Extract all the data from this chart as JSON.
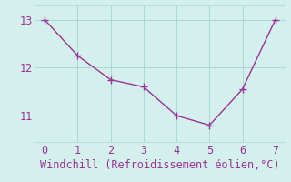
{
  "x": [
    0,
    1,
    2,
    3,
    4,
    5,
    6,
    7
  ],
  "y": [
    13.0,
    12.25,
    11.75,
    11.6,
    11.0,
    10.8,
    11.55,
    13.0
  ],
  "line_color": "#993399",
  "marker_color": "#993399",
  "background_color": "#d4f0ec",
  "grid_color": "#aad8d4",
  "xlabel": "Windchill (Refroidissement éolien,°C)",
  "xlabel_color": "#993399",
  "tick_color": "#993399",
  "xlim": [
    -0.3,
    7.3
  ],
  "ylim": [
    10.45,
    13.3
  ],
  "xticks": [
    0,
    1,
    2,
    3,
    4,
    5,
    6,
    7
  ],
  "yticks": [
    11,
    12,
    13
  ],
  "font_size": 8.5,
  "marker_size": 3,
  "line_width": 1.0
}
